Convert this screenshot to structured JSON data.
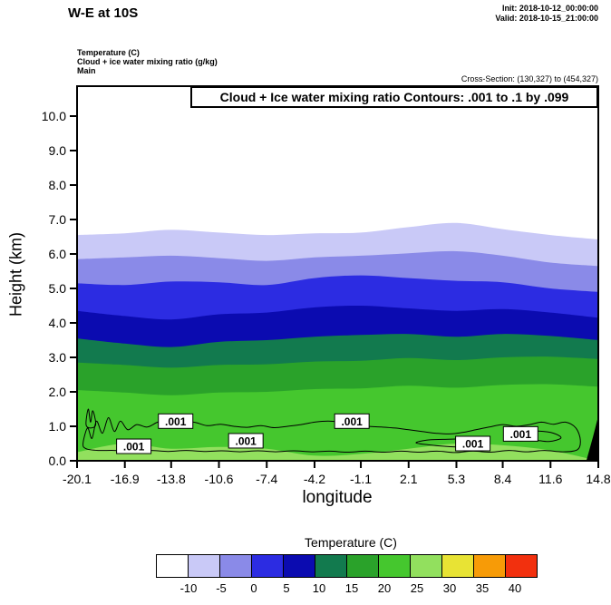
{
  "header": {
    "init_line": "Init: 2018-10-12_00:00:00",
    "valid_line": "Valid: 2018-10-15_21:00:00",
    "field_line_1": "Temperature (C)",
    "field_line_2": "Cloud + ice water mixing ratio (g/kg)",
    "field_line_3": "Main",
    "cross_section_line": "Cross-Section: (130,327) to (454,327)"
  },
  "chart_data": {
    "type": "area",
    "subtype": "filled_contour_vertical_cross_section",
    "title": "W-E at 10S",
    "inner_title": "Cloud + Ice water mixing ratio Contours: .001 to .1 by .099",
    "xlabel": "longitude",
    "ylabel": "Height (km)",
    "xlim": [
      -20.1,
      14.8
    ],
    "ylim": [
      0.0,
      10.9
    ],
    "grid": false,
    "x_samples": [
      -20.1,
      -16.9,
      -13.8,
      -10.6,
      -7.4,
      -4.2,
      -1.1,
      2.1,
      5.3,
      8.4,
      11.6,
      14.8
    ],
    "x_tick_labels": [
      "-20.1",
      "-16.9",
      "-13.8",
      "-10.6",
      "-7.4",
      "-4.2",
      "-1.1",
      "2.1",
      "5.3",
      "8.4",
      "11.6",
      "14.8"
    ],
    "y_tick_labels": [
      "0.0",
      "1.0",
      "2.0",
      "3.0",
      "4.0",
      "5.0",
      "6.0",
      "7.0",
      "8.0",
      "9.0",
      "10.0"
    ],
    "temperature_bands": [
      {
        "range_c": "below -10",
        "color": "#ffffff",
        "top_km": null
      },
      {
        "range_c": "-10 to -5",
        "color": "#c9c9f7",
        "top_km": [
          6.55,
          6.6,
          6.7,
          6.62,
          6.55,
          6.6,
          6.62,
          6.78,
          6.9,
          6.72,
          6.55,
          6.42
        ]
      },
      {
        "range_c": "-5 to 0",
        "color": "#8a8ae8",
        "top_km": [
          5.85,
          5.9,
          5.95,
          5.88,
          5.8,
          5.9,
          5.95,
          6.02,
          6.08,
          5.95,
          5.75,
          5.65
        ]
      },
      {
        "range_c": "0 to 5",
        "color": "#2c2ce2",
        "top_km": [
          5.15,
          5.1,
          5.2,
          5.18,
          5.1,
          5.3,
          5.38,
          5.3,
          5.22,
          5.18,
          5.0,
          4.9
        ]
      },
      {
        "range_c": "5 to 10",
        "color": "#0b0bb0",
        "top_km": [
          4.35,
          4.2,
          4.1,
          4.25,
          4.3,
          4.45,
          4.5,
          4.42,
          4.35,
          4.4,
          4.3,
          4.15
        ]
      },
      {
        "range_c": "10 to 15",
        "color": "#127a4e",
        "top_km": [
          3.55,
          3.4,
          3.3,
          3.45,
          3.5,
          3.6,
          3.65,
          3.68,
          3.6,
          3.68,
          3.62,
          3.5
        ]
      },
      {
        "range_c": "15 to 20",
        "color": "#2aa22a",
        "top_km": [
          2.85,
          2.78,
          2.7,
          2.78,
          2.8,
          2.88,
          2.9,
          2.98,
          2.92,
          3.0,
          3.02,
          2.95
        ]
      },
      {
        "range_c": "20 to 25",
        "color": "#45c72e",
        "top_km": [
          2.05,
          1.98,
          1.9,
          1.98,
          2.0,
          2.08,
          2.1,
          2.18,
          2.12,
          2.2,
          2.22,
          2.15
        ]
      },
      {
        "range_c": "25 to 30",
        "color": "#92e05e",
        "top_km": [
          0.25,
          0.5,
          0.35,
          0.4,
          0.35,
          0.15,
          0.2,
          0.35,
          0.5,
          0.45,
          0.3,
          0.0
        ]
      }
    ],
    "terrain": {
      "color": "#000000",
      "polygon_lon_km": [
        [
          14.0,
          0.0
        ],
        [
          14.8,
          0.0
        ],
        [
          14.8,
          1.3
        ],
        [
          14.45,
          0.7
        ]
      ]
    },
    "cloud_contours": {
      "level": 0.001,
      "lines": [
        [
          [
            -19.7,
            0.5
          ],
          [
            -19.4,
            0.95
          ],
          [
            -19.1,
            0.65
          ],
          [
            -18.8,
            1.15
          ],
          [
            -18.4,
            0.8
          ],
          [
            -18.0,
            1.25
          ],
          [
            -17.6,
            0.85
          ],
          [
            -17.2,
            1.15
          ],
          [
            -16.7,
            0.9
          ],
          [
            -16.1,
            1.05
          ],
          [
            -15.4,
            0.98
          ],
          [
            -14.7,
            1.12
          ],
          [
            -14.0,
            1.18
          ],
          [
            -13.2,
            1.08
          ],
          [
            -12.3,
            1.12
          ],
          [
            -11.4,
            1.02
          ],
          [
            -10.5,
            1.06
          ],
          [
            -9.6,
            1.0
          ],
          [
            -8.7,
            0.97
          ],
          [
            -7.8,
            1.02
          ],
          [
            -6.9,
            0.96
          ],
          [
            -6.0,
            1.0
          ],
          [
            -5.1,
            1.05
          ],
          [
            -4.2,
            1.12
          ],
          [
            -3.3,
            1.15
          ],
          [
            -2.4,
            1.12
          ],
          [
            -1.5,
            1.06
          ],
          [
            -0.6,
            1.0
          ],
          [
            0.3,
            0.98
          ],
          [
            1.2,
            0.95
          ],
          [
            2.1,
            0.9
          ],
          [
            3.0,
            0.85
          ],
          [
            3.9,
            0.8
          ],
          [
            4.8,
            0.78
          ],
          [
            5.7,
            0.82
          ],
          [
            6.6,
            0.9
          ],
          [
            7.5,
            0.98
          ],
          [
            8.4,
            1.05
          ],
          [
            9.3,
            1.0
          ],
          [
            10.2,
            1.05
          ],
          [
            11.0,
            1.12
          ],
          [
            11.8,
            1.06
          ],
          [
            12.6,
            1.12
          ],
          [
            13.3,
            0.95
          ],
          [
            13.6,
            0.6
          ],
          [
            13.4,
            0.32
          ],
          [
            12.4,
            0.26
          ],
          [
            11.2,
            0.3
          ],
          [
            10.0,
            0.26
          ],
          [
            8.8,
            0.3
          ],
          [
            7.6,
            0.25
          ],
          [
            6.4,
            0.28
          ],
          [
            5.2,
            0.24
          ],
          [
            4.0,
            0.28
          ],
          [
            2.8,
            0.25
          ],
          [
            1.6,
            0.28
          ],
          [
            0.4,
            0.25
          ],
          [
            -0.8,
            0.28
          ],
          [
            -2.0,
            0.25
          ],
          [
            -3.2,
            0.28
          ],
          [
            -4.4,
            0.26
          ],
          [
            -5.6,
            0.29
          ],
          [
            -6.8,
            0.26
          ],
          [
            -8.0,
            0.29
          ],
          [
            -9.2,
            0.26
          ],
          [
            -10.4,
            0.29
          ],
          [
            -11.6,
            0.27
          ],
          [
            -12.8,
            0.3
          ],
          [
            -14.0,
            0.27
          ],
          [
            -15.2,
            0.3
          ],
          [
            -16.4,
            0.27
          ],
          [
            -17.6,
            0.3
          ],
          [
            -18.7,
            0.3
          ],
          [
            -19.5,
            0.35
          ]
        ],
        [
          [
            -19.5,
            1.05
          ],
          [
            -19.35,
            1.5
          ],
          [
            -19.2,
            1.12
          ],
          [
            -19.05,
            1.45
          ],
          [
            -18.85,
            1.05
          ],
          [
            -19.2,
            0.95
          ]
        ],
        [
          [
            2.6,
            0.52
          ],
          [
            3.5,
            0.46
          ],
          [
            4.5,
            0.42
          ],
          [
            5.5,
            0.4
          ],
          [
            6.5,
            0.45
          ],
          [
            7.3,
            0.52
          ],
          [
            6.6,
            0.6
          ],
          [
            5.5,
            0.63
          ],
          [
            4.4,
            0.62
          ],
          [
            3.3,
            0.6
          ]
        ],
        [
          [
            8.6,
            0.68
          ],
          [
            9.5,
            0.58
          ],
          [
            10.5,
            0.6
          ],
          [
            11.5,
            0.56
          ],
          [
            12.3,
            0.66
          ],
          [
            11.8,
            0.8
          ],
          [
            10.8,
            0.86
          ],
          [
            9.8,
            0.84
          ],
          [
            9.0,
            0.8
          ]
        ]
      ],
      "labels": [
        {
          "text": ".001",
          "lon": -16.3,
          "km": 0.42
        },
        {
          "text": ".001",
          "lon": -13.5,
          "km": 1.15
        },
        {
          "text": ".001",
          "lon": -8.8,
          "km": 0.58
        },
        {
          "text": ".001",
          "lon": -1.7,
          "km": 1.15
        },
        {
          "text": ".001",
          "lon": 6.4,
          "km": 0.5
        },
        {
          "text": ".001",
          "lon": 9.6,
          "km": 0.78
        }
      ]
    },
    "colorbar": {
      "title": "Temperature (C)",
      "cell_colors": [
        "#ffffff",
        "#c9c9f7",
        "#8a8ae8",
        "#2c2ce2",
        "#0b0bb0",
        "#127a4e",
        "#2aa22a",
        "#45c72e",
        "#92e05e",
        "#e8e334",
        "#f79b07",
        "#f2300e"
      ],
      "boundary_labels": [
        "-10",
        "-5",
        "0",
        "5",
        "10",
        "15",
        "20",
        "25",
        "30",
        "35",
        "40"
      ]
    }
  }
}
